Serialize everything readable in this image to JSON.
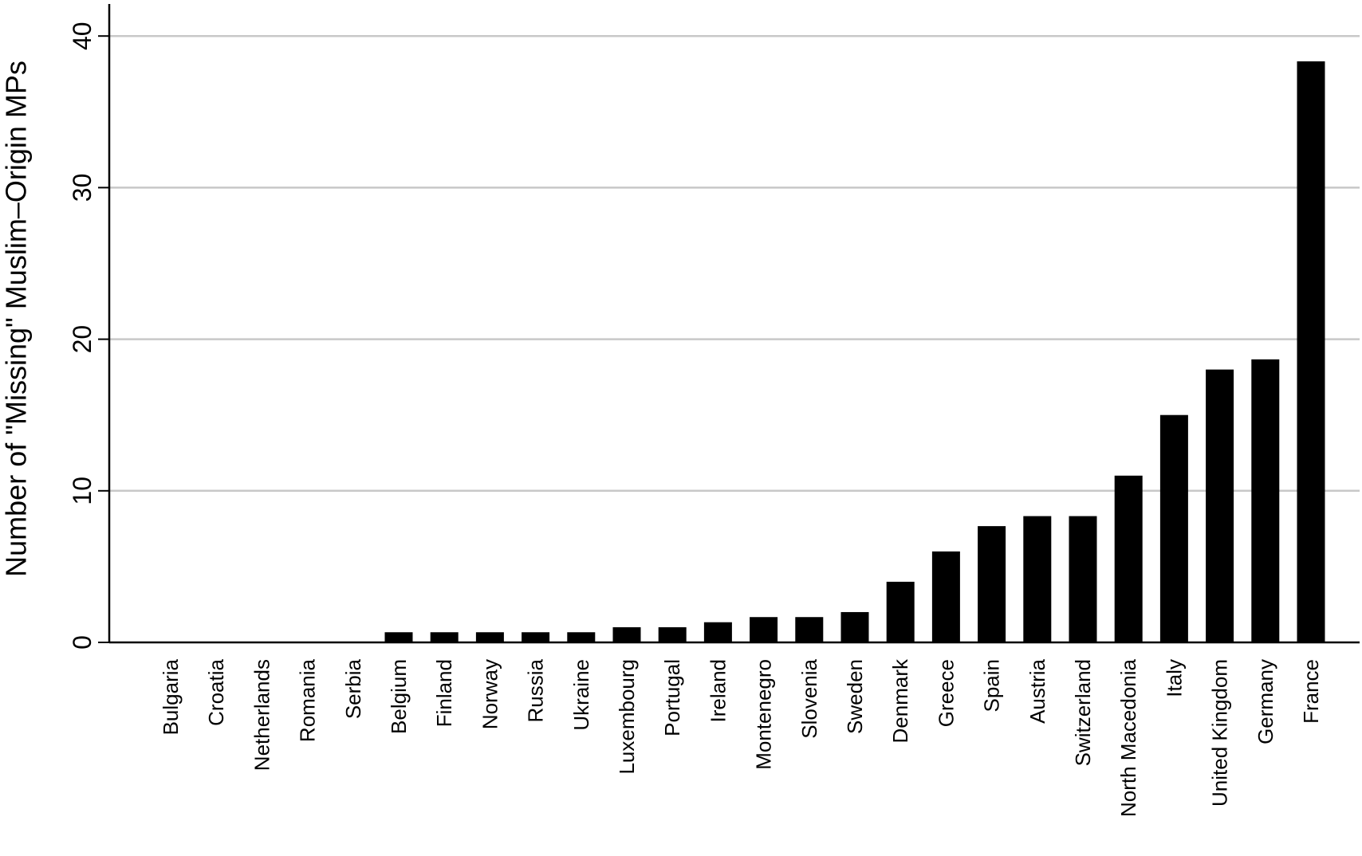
{
  "chart_data": {
    "type": "bar",
    "title": "",
    "xlabel": "",
    "ylabel": "Number of \"Missing\" Muslim–Origin MPs",
    "ylim": [
      0,
      42
    ],
    "yticks": [
      0,
      10,
      20,
      30,
      40
    ],
    "grid": true,
    "bar_color": "#000000",
    "grid_color": "#c8c8c8",
    "categories": [
      "Bulgaria",
      "Croatia",
      "Netherlands",
      "Romania",
      "Serbia",
      "Belgium",
      "Finland",
      "Norway",
      "Russia",
      "Ukraine",
      "Luxembourg",
      "Portugal",
      "Ireland",
      "Montenegro",
      "Slovenia",
      "Sweden",
      "Denmark",
      "Greece",
      "Spain",
      "Austria",
      "Switzerland",
      "North Macedonia",
      "Italy",
      "United Kingdom",
      "Germany",
      "France"
    ],
    "values": [
      0,
      0,
      0,
      0,
      0,
      0.67,
      0.67,
      0.67,
      0.67,
      0.67,
      1,
      1,
      1.33,
      1.67,
      1.67,
      2,
      4,
      6,
      7.67,
      8.33,
      8.33,
      11,
      15,
      18,
      18.67,
      38.33
    ]
  }
}
